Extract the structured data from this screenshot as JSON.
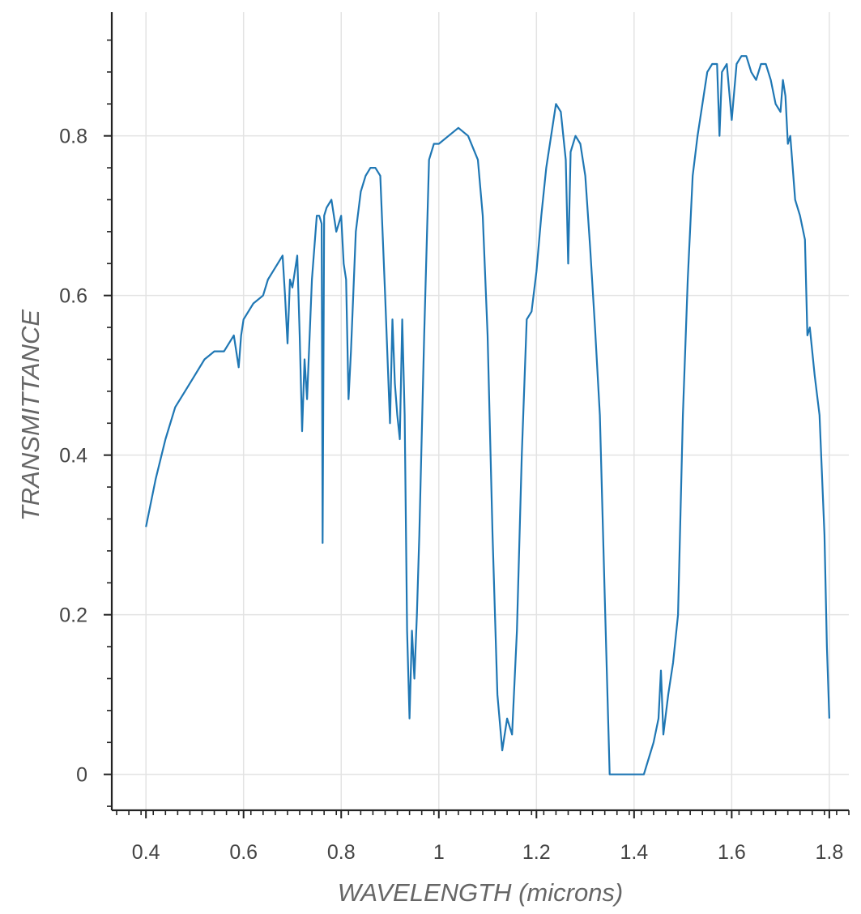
{
  "chart_data": {
    "type": "line",
    "xlabel": "WAVELENGTH (microns)",
    "ylabel": "TRANSMITTANCE",
    "xlim": [
      0.33,
      1.84
    ],
    "ylim": [
      -0.045,
      0.955
    ],
    "x_ticks": [
      0.4,
      0.6,
      0.8,
      1.0,
      1.2,
      1.4,
      1.6,
      1.8
    ],
    "x_tick_labels": [
      "0.4",
      "0.6",
      "0.8",
      "1",
      "1.2",
      "1.4",
      "1.6",
      "1.8"
    ],
    "y_ticks": [
      0,
      0.2,
      0.4,
      0.6,
      0.8
    ],
    "y_tick_labels": [
      "0",
      "0.2",
      "0.4",
      "0.6",
      "0.8"
    ],
    "grid": true,
    "series_color": "#1f77b4",
    "series": [
      {
        "x": [
          0.4,
          0.42,
          0.44,
          0.46,
          0.48,
          0.5,
          0.52,
          0.54,
          0.56,
          0.58,
          0.59,
          0.595,
          0.6,
          0.62,
          0.64,
          0.65,
          0.66,
          0.67,
          0.68,
          0.685,
          0.69,
          0.695,
          0.7,
          0.71,
          0.715,
          0.72,
          0.725,
          0.73,
          0.74,
          0.75,
          0.755,
          0.76,
          0.762,
          0.765,
          0.77,
          0.78,
          0.79,
          0.8,
          0.805,
          0.81,
          0.815,
          0.82,
          0.83,
          0.84,
          0.85,
          0.86,
          0.87,
          0.88,
          0.89,
          0.9,
          0.905,
          0.91,
          0.915,
          0.92,
          0.925,
          0.93,
          0.935,
          0.94,
          0.945,
          0.95,
          0.955,
          0.96,
          0.97,
          0.98,
          0.99,
          1.0,
          1.02,
          1.04,
          1.06,
          1.08,
          1.09,
          1.1,
          1.11,
          1.12,
          1.13,
          1.14,
          1.15,
          1.16,
          1.17,
          1.18,
          1.19,
          1.2,
          1.21,
          1.22,
          1.23,
          1.24,
          1.25,
          1.26,
          1.265,
          1.27,
          1.28,
          1.29,
          1.3,
          1.31,
          1.32,
          1.33,
          1.34,
          1.35,
          1.36,
          1.38,
          1.4,
          1.42,
          1.43,
          1.44,
          1.45,
          1.455,
          1.46,
          1.47,
          1.48,
          1.49,
          1.5,
          1.51,
          1.52,
          1.53,
          1.54,
          1.55,
          1.56,
          1.57,
          1.575,
          1.58,
          1.59,
          1.6,
          1.61,
          1.62,
          1.63,
          1.64,
          1.65,
          1.66,
          1.67,
          1.68,
          1.69,
          1.7,
          1.705,
          1.71,
          1.715,
          1.72,
          1.73,
          1.74,
          1.75,
          1.755,
          1.76,
          1.77,
          1.78,
          1.79,
          1.795,
          1.8
        ],
        "y": [
          0.31,
          0.37,
          0.42,
          0.46,
          0.48,
          0.5,
          0.52,
          0.53,
          0.53,
          0.55,
          0.51,
          0.55,
          0.57,
          0.59,
          0.6,
          0.62,
          0.63,
          0.64,
          0.65,
          0.6,
          0.54,
          0.62,
          0.61,
          0.65,
          0.55,
          0.43,
          0.52,
          0.47,
          0.62,
          0.7,
          0.7,
          0.69,
          0.29,
          0.7,
          0.71,
          0.72,
          0.68,
          0.7,
          0.64,
          0.62,
          0.47,
          0.53,
          0.68,
          0.73,
          0.75,
          0.76,
          0.76,
          0.75,
          0.6,
          0.44,
          0.57,
          0.49,
          0.45,
          0.42,
          0.57,
          0.45,
          0.18,
          0.07,
          0.18,
          0.12,
          0.2,
          0.3,
          0.55,
          0.77,
          0.79,
          0.79,
          0.8,
          0.81,
          0.8,
          0.77,
          0.7,
          0.55,
          0.3,
          0.1,
          0.03,
          0.07,
          0.05,
          0.18,
          0.4,
          0.57,
          0.58,
          0.63,
          0.7,
          0.76,
          0.8,
          0.84,
          0.83,
          0.77,
          0.64,
          0.78,
          0.8,
          0.79,
          0.75,
          0.66,
          0.56,
          0.45,
          0.22,
          0.0,
          0.0,
          0.0,
          0.0,
          0.0,
          0.02,
          0.04,
          0.07,
          0.13,
          0.05,
          0.1,
          0.14,
          0.2,
          0.45,
          0.62,
          0.75,
          0.8,
          0.84,
          0.88,
          0.89,
          0.89,
          0.8,
          0.88,
          0.89,
          0.82,
          0.89,
          0.9,
          0.9,
          0.88,
          0.87,
          0.89,
          0.89,
          0.87,
          0.84,
          0.83,
          0.87,
          0.85,
          0.79,
          0.8,
          0.72,
          0.7,
          0.67,
          0.55,
          0.56,
          0.5,
          0.45,
          0.3,
          0.16,
          0.07
        ]
      }
    ]
  }
}
